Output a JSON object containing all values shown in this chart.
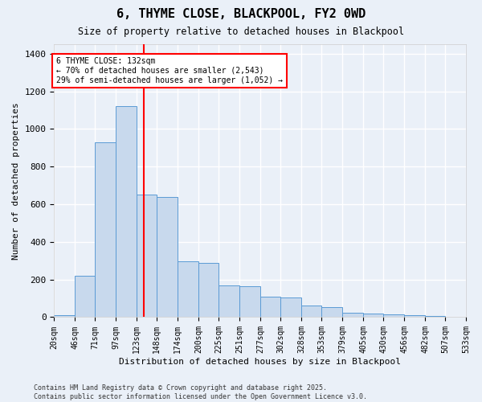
{
  "title": "6, THYME CLOSE, BLACKPOOL, FY2 0WD",
  "subtitle": "Size of property relative to detached houses in Blackpool",
  "xlabel": "Distribution of detached houses by size in Blackpool",
  "ylabel": "Number of detached properties",
  "bar_color": "#c8d9ed",
  "bar_edge_color": "#5b9bd5",
  "background_color": "#eaf0f8",
  "grid_color": "#ffffff",
  "vline_x": 132,
  "vline_color": "red",
  "annotation_text": "6 THYME CLOSE: 132sqm\n← 70% of detached houses are smaller (2,543)\n29% of semi-detached houses are larger (1,052) →",
  "footnote": "Contains HM Land Registry data © Crown copyright and database right 2025.\nContains public sector information licensed under the Open Government Licence v3.0.",
  "bin_edges": [
    20,
    46,
    71,
    97,
    123,
    148,
    174,
    200,
    225,
    251,
    277,
    302,
    328,
    353,
    379,
    405,
    430,
    456,
    482,
    507,
    533
  ],
  "bar_heights": [
    10,
    220,
    930,
    1120,
    650,
    640,
    295,
    290,
    170,
    165,
    110,
    105,
    60,
    55,
    25,
    20,
    13,
    12,
    8,
    2
  ],
  "ylim": [
    0,
    1450
  ],
  "yticks": [
    0,
    200,
    400,
    600,
    800,
    1000,
    1200,
    1400
  ]
}
